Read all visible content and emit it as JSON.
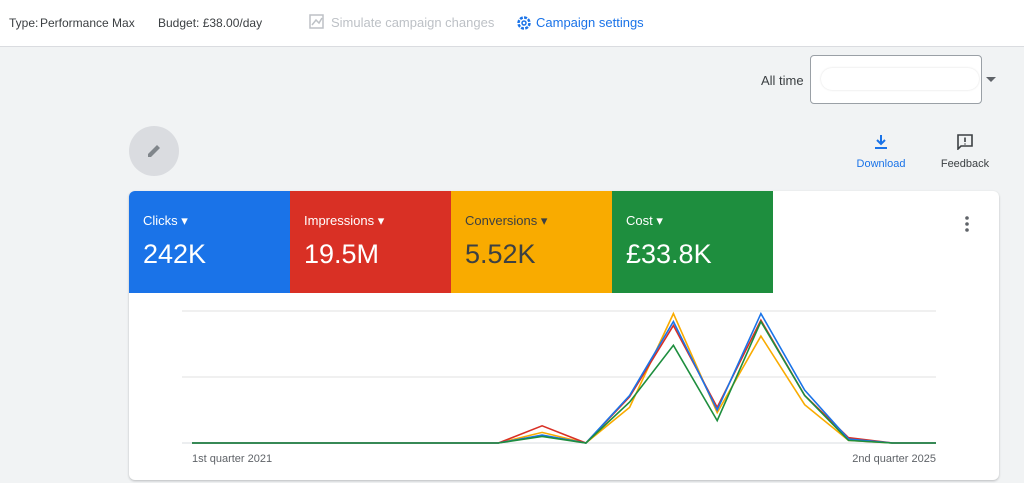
{
  "header": {
    "type_label": "Type:",
    "type_value": "Performance Max",
    "budget": "Budget: £38.00/day",
    "simulate": "Simulate campaign changes",
    "settings": "Campaign settings"
  },
  "toolbar": {
    "date_label": "All time",
    "download": "Download",
    "feedback": "Feedback"
  },
  "chart_data": {
    "type": "line",
    "categories": [
      "1st quarter 2021",
      null,
      null,
      null,
      null,
      null,
      null,
      null,
      null,
      null,
      null,
      null,
      null,
      null,
      null,
      null,
      null,
      "2nd quarter 2025"
    ],
    "ylim": [
      0,
      100
    ],
    "series": [
      {
        "name": "Clicks",
        "total": "242K",
        "color": "#1a73e8",
        "values": [
          0,
          0,
          0,
          0,
          0,
          0,
          0,
          0,
          6,
          0,
          36,
          92,
          25,
          98,
          40,
          3,
          0,
          0
        ]
      },
      {
        "name": "Impressions",
        "total": "19.5M",
        "color": "#d93025",
        "values": [
          0,
          0,
          0,
          0,
          0,
          0,
          0,
          0,
          13,
          0,
          35,
          89,
          27,
          93,
          36,
          4,
          0,
          0
        ]
      },
      {
        "name": "Conversions",
        "total": "5.52K",
        "color": "#f9ab00",
        "values": [
          0,
          0,
          0,
          0,
          0,
          0,
          0,
          0,
          8,
          0,
          27,
          98,
          23,
          81,
          29,
          2,
          0,
          0
        ]
      },
      {
        "name": "Cost",
        "total": "£33.8K",
        "color": "#1e8e3e",
        "values": [
          0,
          0,
          0,
          0,
          0,
          0,
          0,
          0,
          5,
          0,
          31,
          74,
          17,
          92,
          36,
          2,
          0,
          0
        ]
      }
    ]
  }
}
